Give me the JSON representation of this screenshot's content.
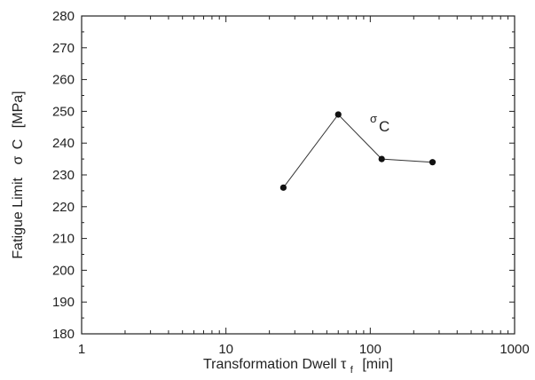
{
  "chart_data": {
    "type": "line",
    "title": "",
    "xlabel": "Transformation Dwell",
    "xlabel_symbol": "τ",
    "xlabel_subscript": "f",
    "xlabel_unit": "[min]",
    "ylabel": "Fatigue Limit",
    "ylabel_symbol": "σ",
    "ylabel_subscript": "C",
    "ylabel_unit": "[MPa]",
    "xscale": "log",
    "xlim": [
      1,
      1000
    ],
    "ylim": [
      180,
      280
    ],
    "x_ticks": [
      "1",
      "10",
      "100",
      "1000"
    ],
    "y_ticks": [
      "180",
      "190",
      "200",
      "210",
      "220",
      "230",
      "240",
      "250",
      "260",
      "270",
      "280"
    ],
    "grid": false,
    "series": [
      {
        "name": "σ C",
        "x": [
          25,
          60,
          120,
          270
        ],
        "y": [
          226,
          249,
          235,
          234
        ]
      }
    ],
    "annotations": [
      {
        "symbol": "σ",
        "text": "C"
      }
    ],
    "colors": {
      "line": "#333333",
      "marker": "#111111",
      "axis": "#222222"
    }
  }
}
